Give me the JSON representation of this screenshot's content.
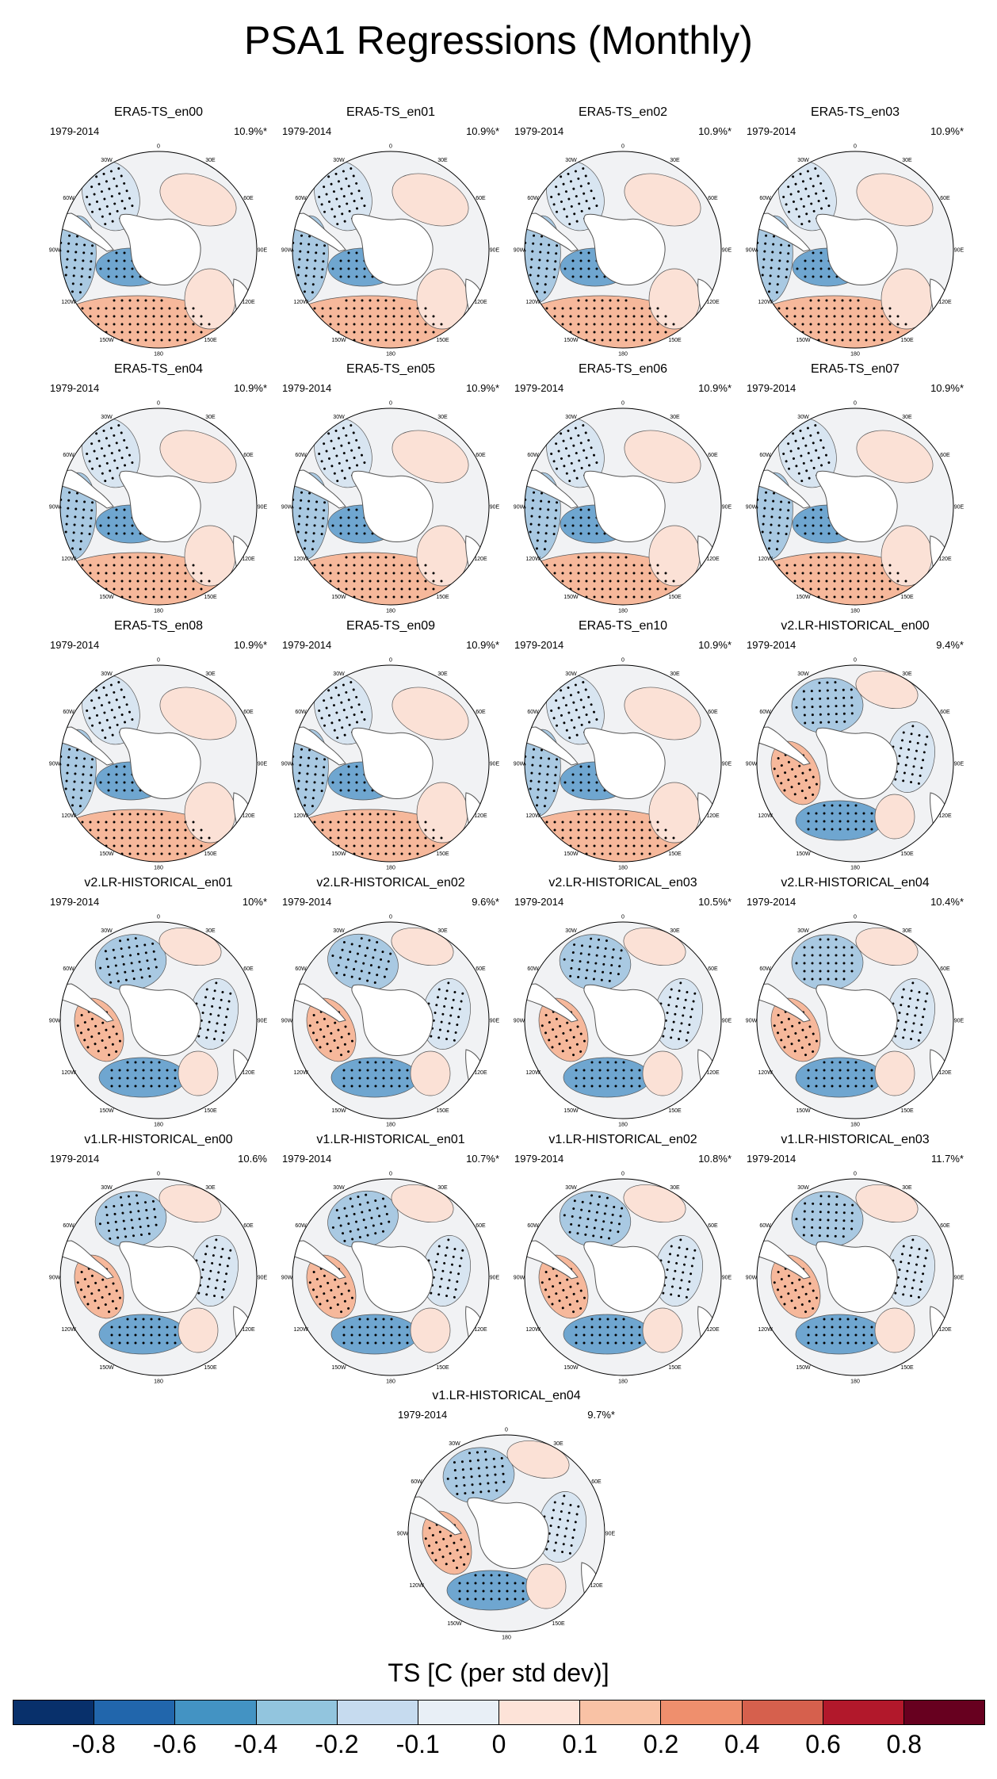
{
  "title": "PSA1 Regressions (Monthly)",
  "period": "1979-2014",
  "lon_labels": [
    "0",
    "30E",
    "60E",
    "90E",
    "120E",
    "150E",
    "180",
    "150W",
    "120W",
    "90W",
    "60W",
    "30W"
  ],
  "panels": [
    {
      "title": "ERA5-TS_en00",
      "pct": "10.9%*",
      "kind": "era5"
    },
    {
      "title": "ERA5-TS_en01",
      "pct": "10.9%*",
      "kind": "era5"
    },
    {
      "title": "ERA5-TS_en02",
      "pct": "10.9%*",
      "kind": "era5"
    },
    {
      "title": "ERA5-TS_en03",
      "pct": "10.9%*",
      "kind": "era5"
    },
    {
      "title": "ERA5-TS_en04",
      "pct": "10.9%*",
      "kind": "era5"
    },
    {
      "title": "ERA5-TS_en05",
      "pct": "10.9%*",
      "kind": "era5"
    },
    {
      "title": "ERA5-TS_en06",
      "pct": "10.9%*",
      "kind": "era5"
    },
    {
      "title": "ERA5-TS_en07",
      "pct": "10.9%*",
      "kind": "era5"
    },
    {
      "title": "ERA5-TS_en08",
      "pct": "10.9%*",
      "kind": "era5"
    },
    {
      "title": "ERA5-TS_en09",
      "pct": "10.9%*",
      "kind": "era5"
    },
    {
      "title": "ERA5-TS_en10",
      "pct": "10.9%*",
      "kind": "era5"
    },
    {
      "title": "v2.LR-HISTORICAL_en00",
      "pct": "9.4%*",
      "kind": "model"
    },
    {
      "title": "v2.LR-HISTORICAL_en01",
      "pct": "10%*",
      "kind": "model"
    },
    {
      "title": "v2.LR-HISTORICAL_en02",
      "pct": "9.6%*",
      "kind": "model"
    },
    {
      "title": "v2.LR-HISTORICAL_en03",
      "pct": "10.5%*",
      "kind": "model"
    },
    {
      "title": "v2.LR-HISTORICAL_en04",
      "pct": "10.4%*",
      "kind": "model"
    },
    {
      "title": "v1.LR-HISTORICAL_en00",
      "pct": "10.6%",
      "kind": "model"
    },
    {
      "title": "v1.LR-HISTORICAL_en01",
      "pct": "10.7%*",
      "kind": "model"
    },
    {
      "title": "v1.LR-HISTORICAL_en02",
      "pct": "10.8%*",
      "kind": "model"
    },
    {
      "title": "v1.LR-HISTORICAL_en03",
      "pct": "11.7%*",
      "kind": "model"
    },
    {
      "title": "v1.LR-HISTORICAL_en04",
      "pct": "9.7%*",
      "kind": "model"
    }
  ],
  "colorbar": {
    "title": "TS [C (per std dev)]",
    "labels": [
      "-0.8",
      "-0.6",
      "-0.4",
      "-0.2",
      "-0.1",
      "0",
      "0.1",
      "0.2",
      "0.4",
      "0.6",
      "0.8"
    ],
    "colors": [
      "#08306b",
      "#2166ac",
      "#4393c3",
      "#92c5de",
      "#c6dbef",
      "#e8eff6",
      "#fde3d8",
      "#f9c2a5",
      "#ef8f6d",
      "#d6604d",
      "#b2182b",
      "#67001f"
    ]
  },
  "map_colors": {
    "land": "#ffffff",
    "neutral": "#f1f2f4",
    "light_blue": "#d8e5f1",
    "mid_blue": "#a9c9e2",
    "dark_blue": "#6fa6d0",
    "light_red": "#fbe1d6",
    "mid_red": "#f6b89b",
    "dark_red": "#ec8b69"
  }
}
